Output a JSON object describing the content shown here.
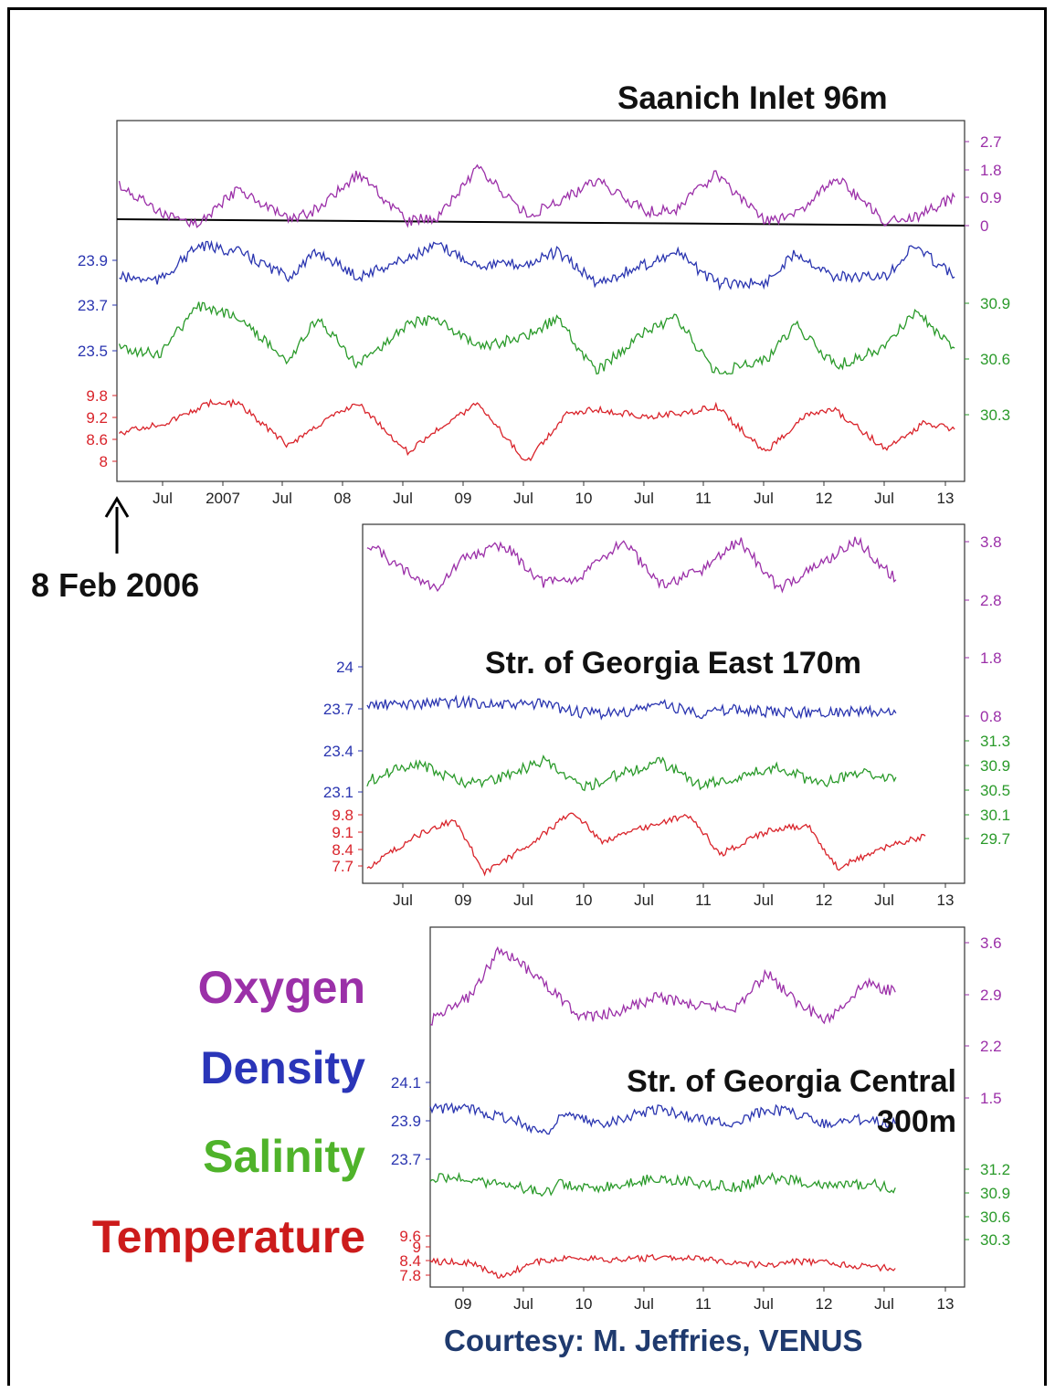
{
  "chart_data": [
    {
      "type": "line",
      "title": "Saanich Inlet   96m",
      "x_range": [
        "2006-02-08",
        "2013-03-15"
      ],
      "x_ticks": [
        "Jul",
        "2007",
        "Jul",
        "08",
        "Jul",
        "09",
        "Jul",
        "10",
        "Jul",
        "11",
        "Jul",
        "12",
        "Jul",
        "13"
      ],
      "axes": {
        "oxygen": {
          "ticks": [
            "2.7",
            "1.8",
            "0.9",
            "0"
          ],
          "range": [
            0,
            3.0
          ],
          "side": "right"
        },
        "density": {
          "ticks": [
            "23.9",
            "23.7",
            "23.5"
          ],
          "range": [
            23.3,
            24.05
          ],
          "side": "left"
        },
        "salinity": {
          "ticks": [
            "30.9",
            "30.6",
            "30.3"
          ],
          "range": [
            30.15,
            31.05
          ],
          "side": "right"
        },
        "temperature": {
          "ticks": [
            "9.8",
            "9.2",
            "8.6",
            "8"
          ],
          "range": [
            7.6,
            10.4
          ],
          "side": "left"
        }
      },
      "series": [
        {
          "name": "Oxygen",
          "color": "#9b2fa8",
          "x": [
            "2006-02",
            "2006-07",
            "2006-10",
            "2007-02",
            "2007-07",
            "2007-10",
            "2008-02",
            "2008-07",
            "2008-10",
            "2009-02",
            "2009-07",
            "2009-10",
            "2010-02",
            "2010-07",
            "2010-10",
            "2011-02",
            "2011-07",
            "2011-10",
            "2012-02",
            "2012-07",
            "2012-10",
            "2013-02"
          ],
          "values": [
            1.4,
            0.3,
            0.1,
            1.3,
            0.2,
            0.6,
            1.8,
            0.2,
            0.3,
            2.0,
            0.4,
            0.8,
            1.6,
            0.5,
            0.6,
            1.8,
            0.2,
            0.4,
            1.7,
            0.2,
            0.3,
            1.0
          ]
        },
        {
          "name": "Density",
          "color": "#2a35b0",
          "x": [
            "2006-02",
            "2006-06",
            "2006-10",
            "2007-02",
            "2007-07",
            "2007-10",
            "2008-02",
            "2008-07",
            "2008-10",
            "2009-02",
            "2009-07",
            "2009-10",
            "2010-02",
            "2010-07",
            "2010-10",
            "2011-02",
            "2011-07",
            "2011-10",
            "2012-02",
            "2012-07",
            "2012-10",
            "2013-02"
          ],
          "values": [
            23.75,
            23.72,
            24.0,
            23.95,
            23.75,
            23.95,
            23.75,
            23.9,
            24.0,
            23.85,
            23.85,
            23.95,
            23.7,
            23.85,
            23.95,
            23.7,
            23.7,
            23.95,
            23.75,
            23.75,
            24.0,
            23.75
          ]
        },
        {
          "name": "Salinity",
          "color": "#2a9a2a",
          "x": [
            "2006-02",
            "2006-06",
            "2006-10",
            "2007-02",
            "2007-07",
            "2007-10",
            "2008-02",
            "2008-07",
            "2008-10",
            "2009-02",
            "2009-07",
            "2009-10",
            "2010-02",
            "2010-07",
            "2010-10",
            "2011-02",
            "2011-07",
            "2011-10",
            "2012-02",
            "2012-07",
            "2012-10",
            "2013-02"
          ],
          "values": [
            30.6,
            30.55,
            30.95,
            30.85,
            30.5,
            30.85,
            30.45,
            30.8,
            30.85,
            30.6,
            30.7,
            30.85,
            30.4,
            30.75,
            30.85,
            30.4,
            30.5,
            30.8,
            30.45,
            30.6,
            30.9,
            30.6
          ]
        },
        {
          "name": "Temperature",
          "color": "#d9232a",
          "x": [
            "2006-02",
            "2006-07",
            "2006-11",
            "2007-02",
            "2007-07",
            "2007-11",
            "2008-02",
            "2008-07",
            "2008-11",
            "2009-02",
            "2009-07",
            "2009-11",
            "2010-02",
            "2010-07",
            "2010-11",
            "2011-02",
            "2011-07",
            "2011-11",
            "2012-02",
            "2012-07",
            "2012-11",
            "2013-02"
          ],
          "values": [
            8.9,
            9.2,
            9.8,
            9.8,
            8.5,
            9.3,
            9.8,
            8.3,
            9.2,
            9.8,
            8.0,
            9.5,
            9.6,
            9.4,
            9.5,
            9.7,
            8.3,
            9.4,
            9.6,
            8.4,
            9.2,
            9.0
          ]
        }
      ]
    },
    {
      "type": "line",
      "title": "Str. of Georgia East  170m",
      "x_range": [
        "2008-02-01",
        "2013-03-15"
      ],
      "x_ticks": [
        "Jul",
        "09",
        "Jul",
        "10",
        "Jul",
        "11",
        "Jul",
        "12",
        "Jul",
        "13"
      ],
      "axes": {
        "oxygen": {
          "ticks": [
            "3.8",
            "2.8",
            "1.8",
            "0.8"
          ],
          "range": [
            0.4,
            4.1
          ],
          "side": "right"
        },
        "density": {
          "ticks": [
            "24",
            "23.7",
            "23.4",
            "23.1"
          ],
          "range": [
            22.9,
            24.2
          ],
          "side": "left"
        },
        "salinity": {
          "ticks": [
            "31.3",
            "30.9",
            "30.5",
            "30.1",
            "29.7"
          ],
          "range": [
            29.2,
            31.6
          ],
          "side": "right"
        },
        "temperature": {
          "ticks": [
            "9.8",
            "9.1",
            "8.4",
            "7.7"
          ],
          "range": [
            7.3,
            10.2
          ],
          "side": "left"
        }
      },
      "series": [
        {
          "name": "Oxygen",
          "color": "#9b2fa8",
          "x": [
            "2008-02",
            "2008-05",
            "2008-09",
            "2008-12",
            "2009-04",
            "2009-08",
            "2009-12",
            "2010-04",
            "2010-08",
            "2010-12",
            "2011-04",
            "2011-08",
            "2011-12",
            "2012-04",
            "2012-08"
          ],
          "values": [
            3.8,
            3.0,
            2.2,
            3.3,
            3.7,
            2.4,
            2.6,
            3.9,
            2.3,
            2.8,
            3.9,
            2.2,
            3.0,
            3.9,
            2.5
          ]
        },
        {
          "name": "Density",
          "color": "#2a35b0",
          "x": [
            "2008-02",
            "2008-07",
            "2008-12",
            "2009-04",
            "2009-08",
            "2009-12",
            "2010-04",
            "2010-08",
            "2010-12",
            "2011-04",
            "2011-08",
            "2011-12",
            "2012-04",
            "2012-08"
          ],
          "values": [
            23.7,
            23.72,
            23.75,
            23.7,
            23.72,
            23.6,
            23.6,
            23.72,
            23.6,
            23.65,
            23.6,
            23.62,
            23.62,
            23.6
          ]
        },
        {
          "name": "Salinity",
          "color": "#2a9a2a",
          "x": [
            "2008-02",
            "2008-07",
            "2008-12",
            "2009-04",
            "2009-08",
            "2009-12",
            "2010-04",
            "2010-08",
            "2010-12",
            "2011-04",
            "2011-08",
            "2011-12",
            "2012-04",
            "2012-08"
          ],
          "values": [
            30.4,
            30.9,
            30.3,
            30.5,
            30.95,
            30.2,
            30.6,
            30.9,
            30.3,
            30.5,
            30.8,
            30.3,
            30.6,
            30.5
          ]
        },
        {
          "name": "Temperature",
          "color": "#d9232a",
          "x": [
            "2008-02",
            "2008-07",
            "2008-11",
            "2009-02",
            "2009-07",
            "2009-11",
            "2010-02",
            "2010-07",
            "2010-11",
            "2011-02",
            "2011-07",
            "2011-11",
            "2012-02",
            "2012-07",
            "2012-11"
          ],
          "values": [
            7.8,
            9.0,
            9.6,
            7.6,
            8.8,
            9.9,
            8.8,
            9.4,
            9.8,
            8.3,
            9.2,
            9.4,
            7.8,
            8.6,
            9.0
          ]
        }
      ]
    },
    {
      "type": "line",
      "title": "Str. of Georgia Central\n300m",
      "x_range": [
        "2008-09-15",
        "2013-03-15"
      ],
      "x_ticks": [
        "09",
        "Jul",
        "10",
        "Jul",
        "11",
        "Jul",
        "12",
        "Jul",
        "13"
      ],
      "axes": {
        "oxygen": {
          "ticks": [
            "3.6",
            "2.9",
            "2.2",
            "1.5"
          ],
          "range": [
            1.1,
            3.9
          ],
          "side": "right"
        },
        "density": {
          "ticks": [
            "24.1",
            "23.9",
            "23.7"
          ],
          "range": [
            23.4,
            24.25
          ],
          "side": "left"
        },
        "salinity": {
          "ticks": [
            "31.2",
            "30.9",
            "30.6",
            "30.3"
          ],
          "range": [
            29.7,
            31.6
          ],
          "side": "right"
        },
        "temperature": {
          "ticks": [
            "9.6",
            "9",
            "8.4",
            "7.8"
          ],
          "range": [
            7.5,
            11.5
          ],
          "side": "left"
        }
      },
      "series": [
        {
          "name": "Oxygen",
          "color": "#9b2fa8",
          "x": [
            "2008-09",
            "2009-01",
            "2009-04",
            "2009-08",
            "2009-12",
            "2010-02",
            "2010-04",
            "2010-08",
            "2010-12",
            "2011-04",
            "2011-07",
            "2011-10",
            "2012-01",
            "2012-05",
            "2012-08"
          ],
          "values": [
            2.0,
            2.5,
            3.5,
            2.9,
            2.1,
            2.1,
            2.2,
            2.5,
            2.3,
            2.3,
            3.0,
            2.4,
            2.0,
            2.8,
            2.6
          ]
        },
        {
          "name": "Density",
          "color": "#2a35b0",
          "x": [
            "2008-09",
            "2009-01",
            "2009-05",
            "2009-09",
            "2009-10",
            "2010-02",
            "2010-04",
            "2010-08",
            "2010-12",
            "2011-04",
            "2011-07",
            "2011-10",
            "2012-01",
            "2012-05",
            "2012-08"
          ],
          "values": [
            23.95,
            23.95,
            23.85,
            23.7,
            23.9,
            23.8,
            23.85,
            23.95,
            23.85,
            23.8,
            23.95,
            23.9,
            23.8,
            23.85,
            23.8
          ]
        },
        {
          "name": "Salinity",
          "color": "#2a9a2a",
          "x": [
            "2008-09",
            "2009-01",
            "2009-05",
            "2009-09",
            "2009-10",
            "2010-02",
            "2010-04",
            "2010-08",
            "2010-12",
            "2011-04",
            "2011-07",
            "2011-10",
            "2012-01",
            "2012-05",
            "2012-08"
          ],
          "values": [
            30.95,
            30.9,
            30.75,
            30.6,
            30.8,
            30.7,
            30.8,
            30.95,
            30.8,
            30.7,
            30.95,
            30.85,
            30.7,
            30.8,
            30.7
          ]
        },
        {
          "name": "Temperature",
          "color": "#d9232a",
          "x": [
            "2008-09",
            "2009-01",
            "2009-04",
            "2009-08",
            "2009-12",
            "2010-02",
            "2010-04",
            "2010-08",
            "2010-12",
            "2011-04",
            "2011-07",
            "2011-10",
            "2012-01",
            "2012-05",
            "2012-08"
          ],
          "values": [
            9.1,
            9.0,
            8.0,
            9.1,
            9.4,
            9.3,
            9.2,
            9.4,
            9.3,
            9.0,
            8.8,
            9.1,
            9.0,
            8.7,
            8.6
          ]
        }
      ]
    }
  ],
  "legend": {
    "oxygen": "Oxygen",
    "density": "Density",
    "salinity": "Salinity",
    "temperature": "Temperature"
  },
  "colors": {
    "oxygen": "#9b2fa8",
    "density": "#2a35b0",
    "salinity": "#2a9a2a",
    "temperature": "#d9232a",
    "legend_oxygen": "#9b30a8",
    "legend_density": "#2a35b8",
    "legend_salinity": "#4fb32a",
    "legend_temperature": "#cc1b1b",
    "courtesy": "#1f3a6e"
  },
  "start_marker": "8 Feb 2006",
  "courtesy": "Courtesy: M. Jeffries, VENUS"
}
